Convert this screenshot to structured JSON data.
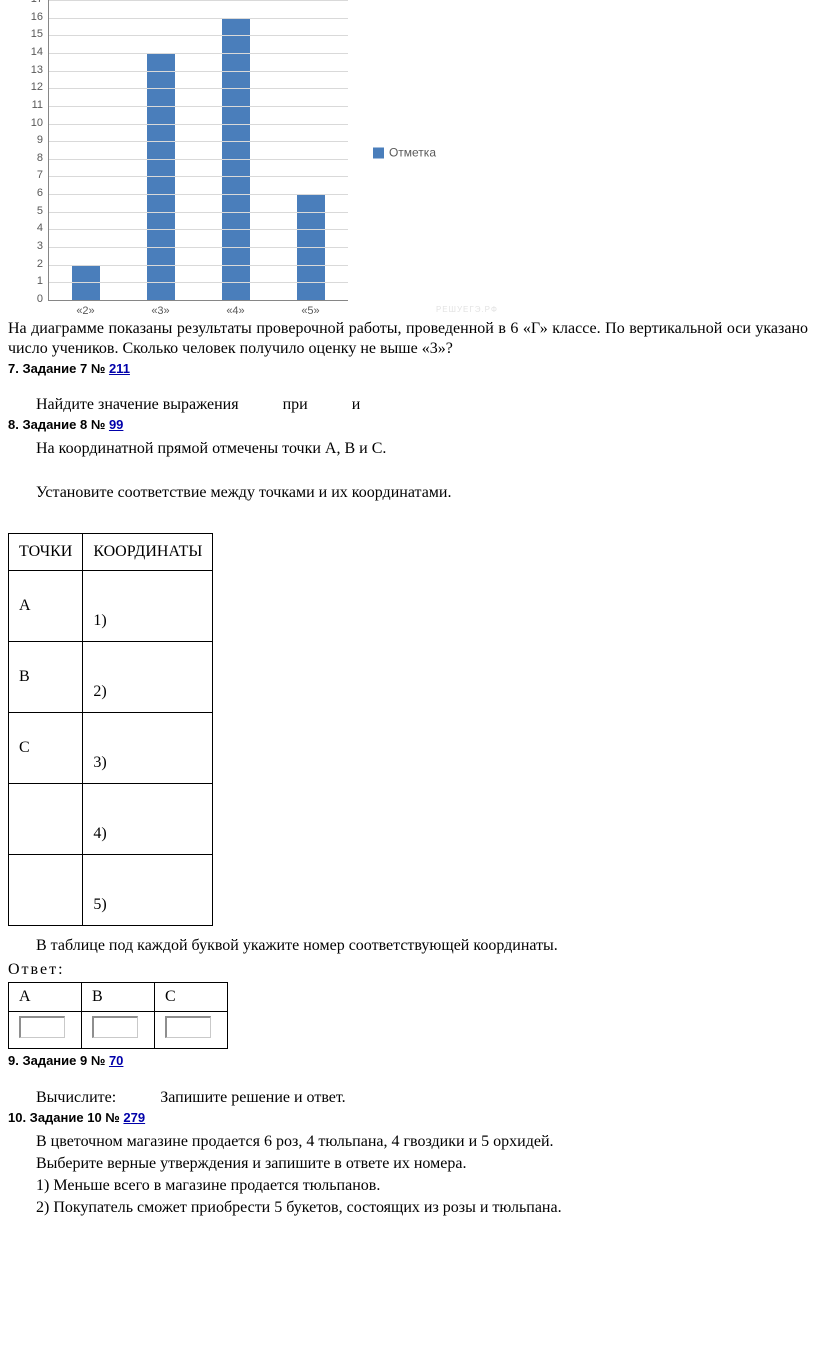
{
  "chart": {
    "type": "bar",
    "categories": [
      "«2»",
      "«3»",
      "«4»",
      "«5»"
    ],
    "values": [
      2,
      14,
      16,
      6
    ],
    "y_min": 0,
    "y_max": 17,
    "y_tick_step": 1,
    "bar_color": "#4a7ebb",
    "grid_color": "#d9d9d9",
    "axis_color": "#868686",
    "tick_font_color": "#595959",
    "legend_label": "Отметка",
    "legend_swatch_color": "#4a7ebb",
    "watermark": "РЕШУЕГЭ.РФ"
  },
  "chart_followup_text_1": "На  диаграмме  показаны  результаты",
  "chart_followup_text_2": "проверочной работы, проведенной в 6 «Г» классе. По вертикальной оси указано число учеников. Сколько человек получило оценку не выше «3»?",
  "task7": {
    "label": "7. Задание 7 № ",
    "link": "211",
    "body_prefix": "Найдите значение выражения",
    "body_mid": "при",
    "body_suffix": "и"
  },
  "task8": {
    "label": "8. Задание 8 № ",
    "link": "99",
    "line1": "На координатной прямой отмечены точки A, B и C.",
    "line2": "Установите соответствие между точками и их координатами.",
    "match_table": {
      "headers": [
        "ТОЧКИ",
        "КООРДИНАТЫ"
      ],
      "rows": [
        [
          "A",
          "1)"
        ],
        [
          "B",
          "2)"
        ],
        [
          "C",
          "3)"
        ],
        [
          "",
          "4)"
        ],
        [
          "",
          "5)"
        ]
      ]
    },
    "after_table": "В таблице под каждой буквой укажите номер соответствующей координаты.",
    "answer_label": "Ответ:",
    "answer_table_headers": [
      "А",
      "В",
      "С"
    ]
  },
  "task9": {
    "label": "9. Задание 9 № ",
    "link": "70",
    "body_prefix": "Вычислите:",
    "body_suffix": "Запишите решение и ответ."
  },
  "task10": {
    "label": "10. Задание 10 № ",
    "link": "279",
    "line1": "В цветочном магазине продается 6 роз, 4 тюльпана, 4 гвоздики и 5 орхидей.",
    "line2": "Выберите верные утверждения и запишите в ответе их номера.",
    "opt1": "1) Меньше всего в магазине продается тюльпанов.",
    "opt2": "2) Покупатель сможет приобрести 5 букетов, состоящих из розы и тюльпана."
  }
}
